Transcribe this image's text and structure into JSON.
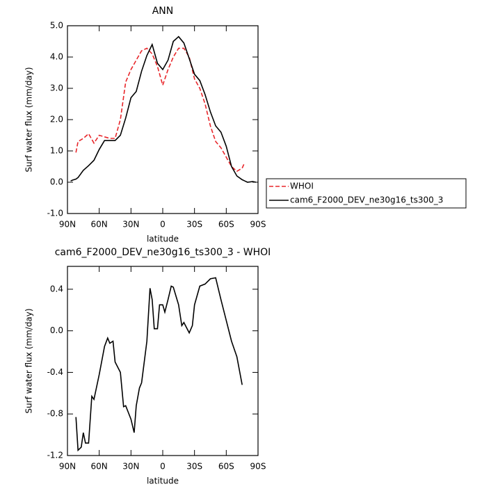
{
  "chart_data": [
    {
      "type": "line",
      "title": "ANN",
      "x_label": "latitude",
      "y_label": "Surf water flux (mm/day)",
      "x": [
        87,
        85,
        82,
        80,
        75,
        70,
        65,
        60,
        55,
        50,
        45,
        40,
        35,
        30,
        25,
        20,
        15,
        10,
        5,
        0,
        -5,
        -10,
        -15,
        -20,
        -25,
        -30,
        -35,
        -40,
        -45,
        -50,
        -55,
        -60,
        -65,
        -70,
        -75,
        -77,
        -80,
        -85,
        -88
      ],
      "series": [
        {
          "name": "WHOI",
          "color": "#e8262a",
          "dash": true,
          "values": [
            null,
            null,
            0.95,
            1.3,
            1.4,
            1.55,
            1.25,
            1.5,
            1.45,
            1.4,
            1.4,
            2.0,
            3.2,
            3.6,
            3.9,
            4.2,
            4.28,
            4.1,
            3.7,
            3.1,
            3.6,
            4.0,
            4.28,
            4.28,
            4.0,
            3.3,
            3.0,
            2.5,
            1.8,
            1.3,
            1.1,
            0.8,
            0.5,
            0.35,
            0.45,
            0.6,
            null,
            null,
            null
          ]
        },
        {
          "name": "cam6_F2000_DEV_ne30g16_ts300_3",
          "color": "#000000",
          "dash": false,
          "values": [
            0.04,
            0.07,
            0.1,
            0.15,
            0.38,
            0.53,
            0.7,
            1.05,
            1.33,
            1.33,
            1.33,
            1.5,
            2.05,
            2.7,
            2.9,
            3.55,
            4.05,
            4.4,
            3.8,
            3.6,
            3.9,
            4.5,
            4.65,
            4.45,
            3.95,
            3.45,
            3.25,
            2.8,
            2.25,
            1.8,
            1.6,
            1.15,
            0.5,
            0.2,
            0.08,
            0.05,
            0.0,
            0.02,
            0.0
          ]
        }
      ],
      "xlim": [
        90,
        -90
      ],
      "xticks": [
        {
          "value": 90,
          "label": "90N"
        },
        {
          "value": 60,
          "label": "60N"
        },
        {
          "value": 30,
          "label": "30N"
        },
        0,
        {
          "value": -30,
          "label": "30S"
        },
        {
          "value": -60,
          "label": "60S"
        },
        {
          "value": -90,
          "label": "90S"
        }
      ],
      "ylim": [
        -1,
        5
      ],
      "yticks": [
        {
          "value": -1,
          "label": "-1.0"
        },
        {
          "value": 0,
          "label": "0.0"
        },
        {
          "value": 1,
          "label": "1.0"
        },
        {
          "value": 2,
          "label": "2.0"
        },
        {
          "value": 3,
          "label": "3.0"
        },
        {
          "value": 4,
          "label": "4.0"
        },
        {
          "value": 5,
          "label": "5.0"
        }
      ],
      "legend": "outside-right"
    },
    {
      "type": "line",
      "title": "cam6_F2000_DEV_ne30g16_ts300_3 - WHOI",
      "x_label": "latitude",
      "y_label": "Surf water flux (mm/day)",
      "x": [
        82,
        80,
        77,
        75,
        73,
        70,
        67,
        65,
        60,
        55,
        52,
        50,
        47,
        45,
        40,
        37,
        35,
        30,
        27,
        25,
        22,
        20,
        15,
        12,
        10,
        8,
        5,
        3,
        0,
        -2,
        -5,
        -8,
        -10,
        -15,
        -18,
        -20,
        -25,
        -28,
        -30,
        -35,
        -40,
        -45,
        -50,
        -55,
        -60,
        -65,
        -70,
        -75
      ],
      "series": [
        {
          "color": "#000000",
          "dash": false,
          "values": [
            -0.83,
            -1.15,
            -1.12,
            -0.98,
            -1.08,
            -1.08,
            -0.63,
            -0.66,
            -0.42,
            -0.15,
            -0.07,
            -0.12,
            -0.1,
            -0.3,
            -0.4,
            -0.73,
            -0.72,
            -0.85,
            -0.98,
            -0.72,
            -0.55,
            -0.5,
            -0.1,
            0.41,
            0.3,
            0.02,
            0.02,
            0.25,
            0.25,
            0.18,
            0.3,
            0.43,
            0.42,
            0.25,
            0.05,
            0.08,
            -0.02,
            0.05,
            0.25,
            0.43,
            0.45,
            0.5,
            0.51,
            0.3,
            0.1,
            -0.1,
            -0.25,
            -0.52
          ]
        }
      ],
      "xlim": [
        90,
        -90
      ],
      "xticks": [
        {
          "value": 90,
          "label": "90N"
        },
        {
          "value": 60,
          "label": "60N"
        },
        {
          "value": 30,
          "label": "30N"
        },
        0,
        {
          "value": -30,
          "label": "30S"
        },
        {
          "value": -60,
          "label": "60S"
        },
        {
          "value": -90,
          "label": "90S"
        }
      ],
      "ylim": [
        -1.2,
        0.62
      ],
      "yticks": [
        0.4,
        {
          "value": 0,
          "label": "0.0"
        },
        -0.4,
        -0.8,
        -1.2
      ]
    }
  ]
}
